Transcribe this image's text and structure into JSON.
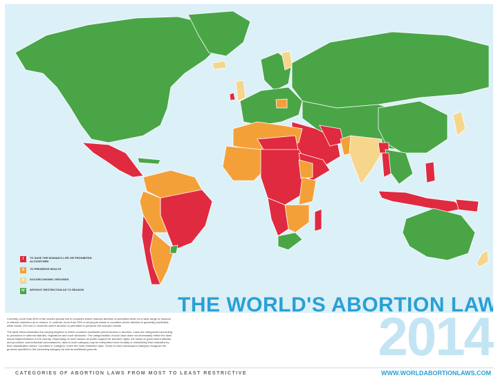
{
  "title": "THE WORLD'S ABORTION LAWS",
  "year": "2014",
  "footer_left": "CATEGORIES OF ABORTION LAWS FROM MOST TO LEAST RESTRICTIVE",
  "footer_url": "WWW.WORLDABORTIONLAWS.COM",
  "intro_paragraphs": [
    "Currently, more than 60% of the world's people live in countries where induced abortion is permitted either for a wide range of reasons or without restriction as to reason. In contrast, more than 25% of all people reside in countries where abortion is generally prohibited, while nearly 14% live in countries where abortion is permitted to preserve the woman's health.",
    "The table below illustrates the varying degrees to which countries worldwide permit access to abortion. Laws are categorized according to provisions in national statutes, regulations and court decisions. The categorization of such laws does not necessarily reflect the laws actual implementation in the country. Depending on such factors as public support for abortion rights, the views of government officials and providers, and individual circumstances, laws in each category may be interpreted more broadly or restrictively than indicated by their classification below. Countries in Category I have the most restrictive laws. Those in each subsequent category recognize the grounds specified in the preceding category as well as additional grounds."
  ],
  "legend": [
    {
      "num": "I",
      "label": "TO SAVE THE WOMAN'S LIFE OR PROHIBITED ALTOGETHER",
      "color": "#e02a3f"
    },
    {
      "num": "II",
      "label": "TO PRESERVE HEALTH",
      "color": "#f4a039"
    },
    {
      "num": "III",
      "label": "SOCIOECONOMIC GROUNDS",
      "color": "#f6d68b"
    },
    {
      "num": "IV",
      "label": "WITHOUT RESTRICTION AS TO REASON",
      "color": "#4aa547"
    }
  ],
  "colors": {
    "ocean": "#dcf0f8",
    "cat1": "#e02a3f",
    "cat2": "#f4a039",
    "cat3": "#f6d68b",
    "cat4": "#4aa547",
    "title": "#2aa0d4",
    "year": "#c3e4f3"
  }
}
